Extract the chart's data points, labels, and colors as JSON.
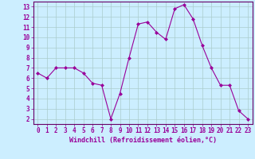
{
  "x": [
    0,
    1,
    2,
    3,
    4,
    5,
    6,
    7,
    8,
    9,
    10,
    11,
    12,
    13,
    14,
    15,
    16,
    17,
    18,
    19,
    20,
    21,
    22,
    23
  ],
  "y": [
    6.5,
    6.0,
    7.0,
    7.0,
    7.0,
    6.5,
    5.5,
    5.3,
    2.0,
    4.5,
    8.0,
    11.3,
    11.5,
    10.5,
    9.8,
    12.8,
    13.2,
    11.8,
    9.2,
    7.0,
    5.3,
    5.3,
    2.8,
    2.0
  ],
  "line_color": "#990099",
  "marker": "D",
  "marker_size": 2.0,
  "bg_color": "#cceeff",
  "grid_color": "#aacccc",
  "xlabel": "Windchill (Refroidissement éolien,°C)",
  "xlabel_color": "#990099",
  "xlabel_fontsize": 6.0,
  "tick_color": "#990099",
  "tick_fontsize": 5.5,
  "ylim": [
    1.5,
    13.5
  ],
  "yticks": [
    2,
    3,
    4,
    5,
    6,
    7,
    8,
    9,
    10,
    11,
    12,
    13
  ],
  "xticks": [
    0,
    1,
    2,
    3,
    4,
    5,
    6,
    7,
    8,
    9,
    10,
    11,
    12,
    13,
    14,
    15,
    16,
    17,
    18,
    19,
    20,
    21,
    22,
    23
  ],
  "xlim": [
    -0.5,
    23.5
  ]
}
